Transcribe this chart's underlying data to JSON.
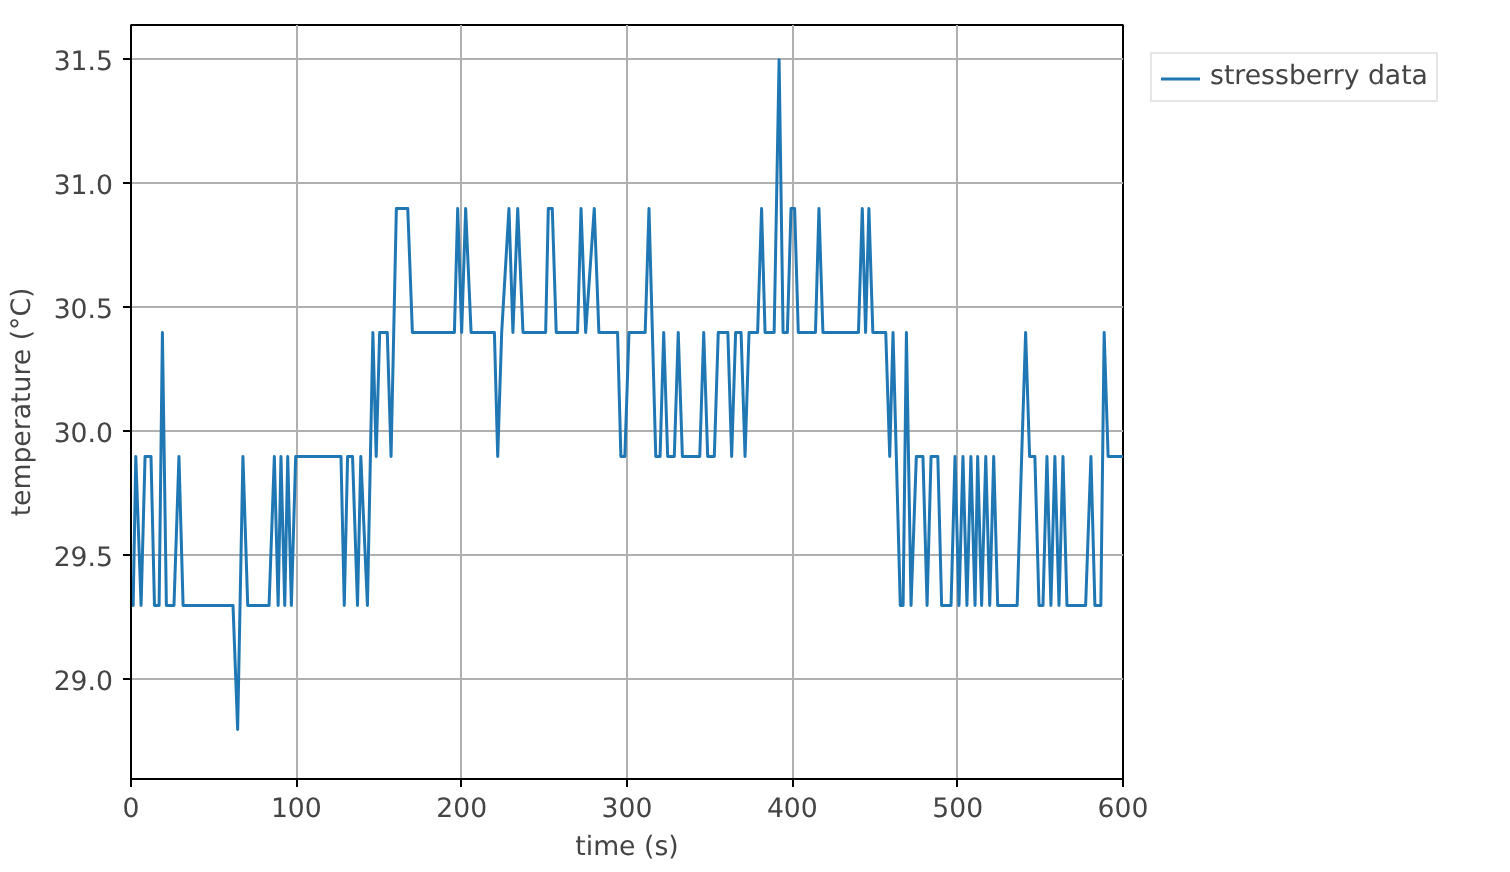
{
  "chart_data": {
    "type": "line",
    "xlabel": "time (s)",
    "ylabel": "temperature (°C)",
    "xlim": [
      0,
      600
    ],
    "ylim": [
      28.6,
      31.64
    ],
    "xticks": [
      0,
      100,
      200,
      300,
      400,
      500,
      600
    ],
    "yticks": [
      {
        "value": 29,
        "label": "29.0"
      },
      29.5,
      {
        "value": 30,
        "label": "30.0"
      },
      30.5,
      {
        "value": 31,
        "label": "31.0"
      },
      31.5
    ],
    "grid": true,
    "legend": "top right",
    "marker": "none",
    "line_style": "solid",
    "series": [
      {
        "name": "stressberry data",
        "color": "#1f77b4",
        "x": [
          0,
          1.3,
          2.9,
          6.1,
          8.5,
          12.1,
          14.2,
          17,
          19,
          21.4,
          26,
          29,
          31.5,
          61.7,
          64.5,
          67.7,
          70.6,
          83.5,
          86.7,
          89,
          90.7,
          93,
          94.8,
          97,
          99.6,
          102,
          108.9,
          110.9,
          127,
          129,
          131,
          134,
          137,
          139,
          143,
          146.3,
          148.3,
          150.4,
          155,
          157.3,
          158.9,
          160.5,
          167.4,
          170.2,
          195.6,
          197.6,
          200,
          202.4,
          205.7,
          219.8,
          221.8,
          224.2,
          228.6,
          231,
          233.9,
          237.1,
          250.8,
          252.4,
          254.8,
          257.2,
          270.1,
          272.2,
          275,
          280.2,
          283,
          294.3,
          296.3,
          298.7,
          301.2,
          311,
          313.3,
          317.4,
          320,
          322.2,
          324.6,
          328.6,
          331,
          333.5,
          344,
          346.4,
          348.8,
          352.8,
          355.2,
          361,
          363.3,
          365.7,
          369,
          371.4,
          373.8,
          379,
          381.4,
          383.5,
          389,
          392,
          394.4,
          397,
          399.2,
          401.4,
          403.6,
          414,
          416.1,
          418.5,
          440,
          442.3,
          444.3,
          446.3,
          448.7,
          456.5,
          458.9,
          460.9,
          462.9,
          465.3,
          467,
          469,
          471.8,
          475,
          479,
          481.5,
          483.9,
          488,
          490.3,
          496,
          498.4,
          500.8,
          503.2,
          505.6,
          508,
          510.5,
          512.1,
          514.5,
          517,
          519.4,
          521.8,
          524.2,
          536,
          538.7,
          541.1,
          543.5,
          546.7,
          549.2,
          551.6,
          554,
          556.4,
          558.8,
          561.3,
          563.7,
          566.1,
          568.5,
          577.4,
          580.6,
          583,
          586.6,
          588.6,
          591,
          600
        ],
        "values": [
          29.3,
          29.3,
          29.9,
          29.3,
          29.9,
          29.9,
          29.3,
          29.3,
          30.4,
          29.3,
          29.3,
          29.9,
          29.3,
          29.3,
          28.8,
          29.9,
          29.3,
          29.3,
          29.9,
          29.3,
          29.9,
          29.3,
          29.9,
          29.3,
          29.9,
          29.9,
          29.9,
          29.9,
          29.9,
          29.3,
          29.9,
          29.9,
          29.3,
          29.9,
          29.3,
          30.4,
          29.9,
          30.4,
          30.4,
          29.9,
          30.4,
          30.9,
          30.9,
          30.4,
          30.4,
          30.9,
          30.4,
          30.9,
          30.4,
          30.4,
          29.9,
          30.4,
          30.9,
          30.4,
          30.9,
          30.4,
          30.4,
          30.9,
          30.9,
          30.4,
          30.4,
          30.9,
          30.4,
          30.9,
          30.4,
          30.4,
          29.9,
          29.9,
          30.4,
          30.4,
          30.9,
          29.9,
          29.9,
          30.4,
          29.9,
          29.9,
          30.4,
          29.9,
          29.9,
          30.4,
          29.9,
          29.9,
          30.4,
          30.4,
          29.9,
          30.4,
          30.4,
          29.9,
          30.4,
          30.4,
          30.9,
          30.4,
          30.4,
          31.5,
          30.4,
          30.4,
          30.9,
          30.9,
          30.4,
          30.4,
          30.9,
          30.4,
          30.4,
          30.9,
          30.4,
          30.9,
          30.4,
          30.4,
          29.9,
          30.4,
          29.9,
          29.3,
          29.3,
          30.4,
          29.3,
          29.9,
          29.9,
          29.3,
          29.9,
          29.9,
          29.3,
          29.3,
          29.9,
          29.3,
          29.9,
          29.3,
          29.9,
          29.3,
          29.9,
          29.3,
          29.9,
          29.3,
          29.9,
          29.3,
          29.3,
          29.9,
          30.4,
          29.9,
          29.9,
          29.3,
          29.3,
          29.9,
          29.3,
          29.9,
          29.3,
          29.9,
          29.3,
          29.3,
          29.3,
          29.9,
          29.3,
          29.3,
          30.4,
          29.9,
          29.9
        ]
      }
    ]
  }
}
